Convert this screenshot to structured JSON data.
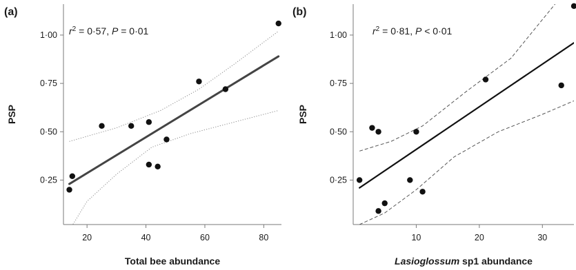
{
  "chart_data": [
    {
      "type": "scatter",
      "panel_label": "(a)",
      "stat_text": {
        "r": "r",
        "sup": "2",
        "mid": " = 0·57, ",
        "p": "P",
        "rest": " = 0·01"
      },
      "xlabel": {
        "italic": "",
        "plain": "Total bee abundance"
      },
      "ylabel": "PSP",
      "xlim": [
        12,
        86
      ],
      "ylim": [
        0.02,
        1.16
      ],
      "xticks": [
        20,
        40,
        60,
        80
      ],
      "xtick_labels": [
        "20",
        "40",
        "60",
        "80"
      ],
      "yticks": [
        0.25,
        0.5,
        0.75,
        1.0
      ],
      "ytick_labels": [
        "0·25",
        "0·50",
        "0·75",
        "1·00"
      ],
      "points": [
        {
          "x": 14,
          "y": 0.2
        },
        {
          "x": 15,
          "y": 0.27
        },
        {
          "x": 25,
          "y": 0.53
        },
        {
          "x": 35,
          "y": 0.53
        },
        {
          "x": 41,
          "y": 0.55
        },
        {
          "x": 41,
          "y": 0.33
        },
        {
          "x": 44,
          "y": 0.32
        },
        {
          "x": 47,
          "y": 0.46
        },
        {
          "x": 58,
          "y": 0.76
        },
        {
          "x": 67,
          "y": 0.72
        },
        {
          "x": 85,
          "y": 1.06
        }
      ],
      "fit": {
        "x": [
          14,
          85
        ],
        "y": [
          0.23,
          0.89
        ]
      },
      "ci_upper": {
        "x": [
          14,
          30,
          45,
          58,
          70,
          85
        ],
        "y": [
          0.45,
          0.52,
          0.61,
          0.72,
          0.85,
          1.02
        ]
      },
      "ci_lower": {
        "x": [
          14,
          20,
          30,
          42,
          55,
          70,
          85
        ],
        "y": [
          -0.01,
          0.14,
          0.28,
          0.42,
          0.49,
          0.55,
          0.61
        ]
      },
      "fit_color": "#444444",
      "fit_width": 3,
      "ci_dash": "1.2,2.2",
      "ci_color": "#8a8a8a"
    },
    {
      "type": "scatter",
      "panel_label": "(b)",
      "stat_text": {
        "r": "r",
        "sup": "2",
        "mid": " = 0·81, ",
        "p": "P",
        "rest": " < 0·01"
      },
      "xlabel": {
        "italic": "Lasioglossum",
        "plain": " sp1 abundance"
      },
      "ylabel": "PSP",
      "xlim": [
        0,
        35
      ],
      "ylim": [
        0.02,
        1.16
      ],
      "xticks": [
        10,
        20,
        30
      ],
      "xtick_labels": [
        "10",
        "20",
        "30"
      ],
      "yticks": [
        0.25,
        0.5,
        0.75,
        1.0
      ],
      "ytick_labels": [
        "0·25",
        "0·50",
        "0·75",
        "1·00"
      ],
      "points": [
        {
          "x": 1,
          "y": 0.25
        },
        {
          "x": 3,
          "y": 0.52
        },
        {
          "x": 4,
          "y": 0.5
        },
        {
          "x": 4,
          "y": 0.09
        },
        {
          "x": 5,
          "y": 0.13
        },
        {
          "x": 9,
          "y": 0.25
        },
        {
          "x": 10,
          "y": 0.5
        },
        {
          "x": 11,
          "y": 0.19
        },
        {
          "x": 21,
          "y": 0.77
        },
        {
          "x": 33,
          "y": 0.74
        },
        {
          "x": 35,
          "y": 1.15
        }
      ],
      "fit": {
        "x": [
          1,
          35
        ],
        "y": [
          0.21,
          0.96
        ]
      },
      "ci_upper": {
        "x": [
          1,
          6,
          11,
          18,
          25,
          35
        ],
        "y": [
          0.4,
          0.45,
          0.53,
          0.71,
          0.88,
          1.28
        ]
      },
      "ci_lower": {
        "x": [
          1,
          5,
          10,
          16,
          23,
          30,
          35
        ],
        "y": [
          0.02,
          0.08,
          0.2,
          0.37,
          0.5,
          0.59,
          0.66
        ]
      },
      "fit_color": "#111111",
      "fit_width": 2.2,
      "ci_dash": "5,3",
      "ci_color": "#555555"
    }
  ]
}
